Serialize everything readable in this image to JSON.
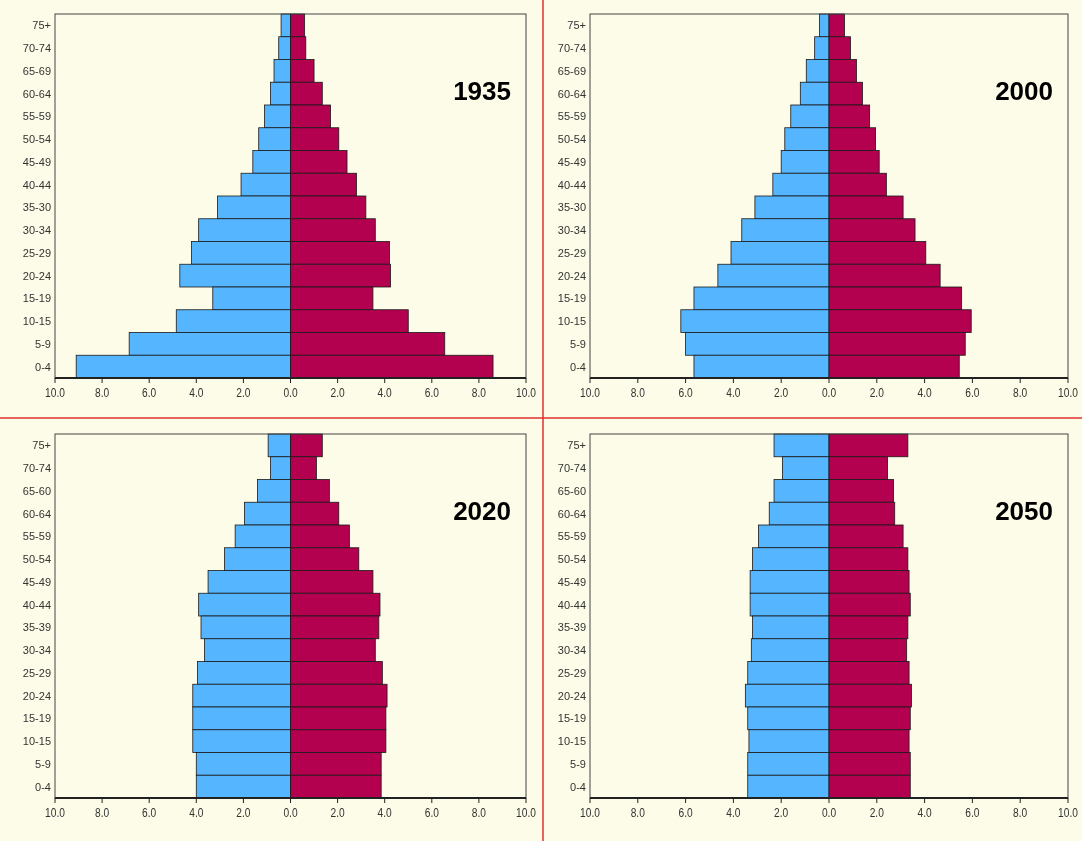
{
  "chart_data": [
    {
      "type": "bar",
      "orientation": "horizontal",
      "title": "1935",
      "stacked": true,
      "categories": [
        "75+",
        "70-74",
        "65-69",
        "60-64",
        "55-59",
        "50-54",
        "45-49",
        "40-44",
        "35-30",
        "30-34",
        "25-29",
        "20-24",
        "15-19",
        "10-15",
        "5-9",
        "0-4"
      ],
      "series": [
        {
          "color": "#55b5ff",
          "values": [
            -0.4,
            -0.5,
            -0.7,
            -0.85,
            -1.1,
            -1.35,
            -1.6,
            -2.1,
            -3.1,
            -3.9,
            -4.2,
            -4.7,
            -3.3,
            -4.85,
            -6.85,
            -9.1
          ]
        },
        {
          "color": "#b3004f",
          "values": [
            0.6,
            0.65,
            1.0,
            1.35,
            1.7,
            2.05,
            2.4,
            2.8,
            3.2,
            3.6,
            4.2,
            4.25,
            3.5,
            5.0,
            6.55,
            8.6
          ]
        }
      ],
      "xlim": [
        -10,
        10
      ],
      "xticks": [
        {
          "value": -10,
          "label": "10.0"
        },
        {
          "value": -8,
          "label": "8.0"
        },
        {
          "value": -6,
          "label": "6.0"
        },
        {
          "value": -4,
          "label": "4.0"
        },
        {
          "value": -2,
          "label": "2.0"
        },
        {
          "value": 0,
          "label": "0.0"
        },
        {
          "value": 2,
          "label": "2.0"
        },
        {
          "value": 4,
          "label": "4.0"
        },
        {
          "value": 6,
          "label": "6.0"
        },
        {
          "value": 8,
          "label": "8.0"
        },
        {
          "value": 10,
          "label": "10.0"
        }
      ]
    },
    {
      "type": "bar",
      "orientation": "horizontal",
      "title": "2000",
      "stacked": true,
      "categories": [
        "75+",
        "70-74",
        "65-69",
        "60-64",
        "55-59",
        "50-54",
        "45-49",
        "40-44",
        "35-30",
        "30-34",
        "25-29",
        "20-24",
        "15-19",
        "10-15",
        "5-9",
        "0-4"
      ],
      "series": [
        {
          "color": "#55b5ff",
          "values": [
            -0.4,
            -0.6,
            -0.95,
            -1.2,
            -1.6,
            -1.85,
            -2.0,
            -2.35,
            -3.1,
            -3.65,
            -4.1,
            -4.65,
            -5.65,
            -6.2,
            -6.0,
            -5.65
          ]
        },
        {
          "color": "#b3004f",
          "values": [
            0.65,
            0.9,
            1.15,
            1.4,
            1.7,
            1.95,
            2.1,
            2.4,
            3.1,
            3.6,
            4.05,
            4.65,
            5.55,
            5.95,
            5.7,
            5.45
          ]
        }
      ],
      "xlim": [
        -10,
        10
      ],
      "xticks": [
        {
          "value": -10,
          "label": "10.0"
        },
        {
          "value": -8,
          "label": "8.0"
        },
        {
          "value": -6,
          "label": "6.0"
        },
        {
          "value": -4,
          "label": "4.0"
        },
        {
          "value": -2,
          "label": "2.0"
        },
        {
          "value": 0,
          "label": "0.0"
        },
        {
          "value": 2,
          "label": "2.0"
        },
        {
          "value": 4,
          "label": "4.0"
        },
        {
          "value": 6,
          "label": "6.0"
        },
        {
          "value": 8,
          "label": "8.0"
        },
        {
          "value": 10,
          "label": "10.0"
        }
      ]
    },
    {
      "type": "bar",
      "orientation": "horizontal",
      "title": "2020",
      "stacked": true,
      "categories": [
        "75+",
        "70-74",
        "65-60",
        "60-64",
        "55-59",
        "50-54",
        "45-49",
        "40-44",
        "35-39",
        "30-34",
        "25-29",
        "20-24",
        "15-19",
        "10-15",
        "5-9",
        "0-4"
      ],
      "series": [
        {
          "color": "#55b5ff",
          "values": [
            -0.95,
            -0.85,
            -1.4,
            -1.95,
            -2.35,
            -2.8,
            -3.5,
            -3.9,
            -3.8,
            -3.65,
            -3.95,
            -4.15,
            -4.15,
            -4.15,
            -4.0,
            -4.0
          ]
        },
        {
          "color": "#b3004f",
          "values": [
            1.35,
            1.1,
            1.65,
            2.05,
            2.5,
            2.9,
            3.5,
            3.8,
            3.75,
            3.6,
            3.9,
            4.1,
            4.05,
            4.05,
            3.85,
            3.85
          ]
        }
      ],
      "xlim": [
        -10,
        10
      ],
      "xticks": [
        {
          "value": -10,
          "label": "10.0"
        },
        {
          "value": -8,
          "label": "8.0"
        },
        {
          "value": -6,
          "label": "6.0"
        },
        {
          "value": -4,
          "label": "4.0"
        },
        {
          "value": -2,
          "label": "2.0"
        },
        {
          "value": 0,
          "label": "0.0"
        },
        {
          "value": 2,
          "label": "2.0"
        },
        {
          "value": 4,
          "label": "4.0"
        },
        {
          "value": 6,
          "label": "6.0"
        },
        {
          "value": 8,
          "label": "8.0"
        },
        {
          "value": 10,
          "label": "10.0"
        }
      ]
    },
    {
      "type": "bar",
      "orientation": "horizontal",
      "title": "2050",
      "stacked": true,
      "categories": [
        "75+",
        "70-74",
        "65-60",
        "60-64",
        "55-59",
        "50-54",
        "45-49",
        "40-44",
        "35-39",
        "30-34",
        "25-29",
        "20-24",
        "15-19",
        "10-15",
        "5-9",
        "0-4"
      ],
      "series": [
        {
          "color": "#55b5ff",
          "values": [
            -2.3,
            -1.95,
            -2.3,
            -2.5,
            -2.95,
            -3.2,
            -3.3,
            -3.3,
            -3.2,
            -3.25,
            -3.4,
            -3.5,
            -3.4,
            -3.35,
            -3.4,
            -3.4
          ]
        },
        {
          "color": "#b3004f",
          "values": [
            3.3,
            2.45,
            2.7,
            2.75,
            3.1,
            3.3,
            3.35,
            3.4,
            3.3,
            3.25,
            3.35,
            3.45,
            3.4,
            3.35,
            3.4,
            3.4
          ]
        }
      ],
      "xlim": [
        -10,
        10
      ],
      "xticks": [
        {
          "value": -10,
          "label": "10.0"
        },
        {
          "value": -8,
          "label": "8.0"
        },
        {
          "value": -6,
          "label": "6.0"
        },
        {
          "value": -4,
          "label": "4.0"
        },
        {
          "value": -2,
          "label": "2.0"
        },
        {
          "value": 0,
          "label": "0.0"
        },
        {
          "value": 2,
          "label": "2.0"
        },
        {
          "value": 4,
          "label": "4.0"
        },
        {
          "value": 6,
          "label": "6.0"
        },
        {
          "value": 8,
          "label": "8.0"
        },
        {
          "value": 10,
          "label": "10.0"
        }
      ]
    }
  ]
}
